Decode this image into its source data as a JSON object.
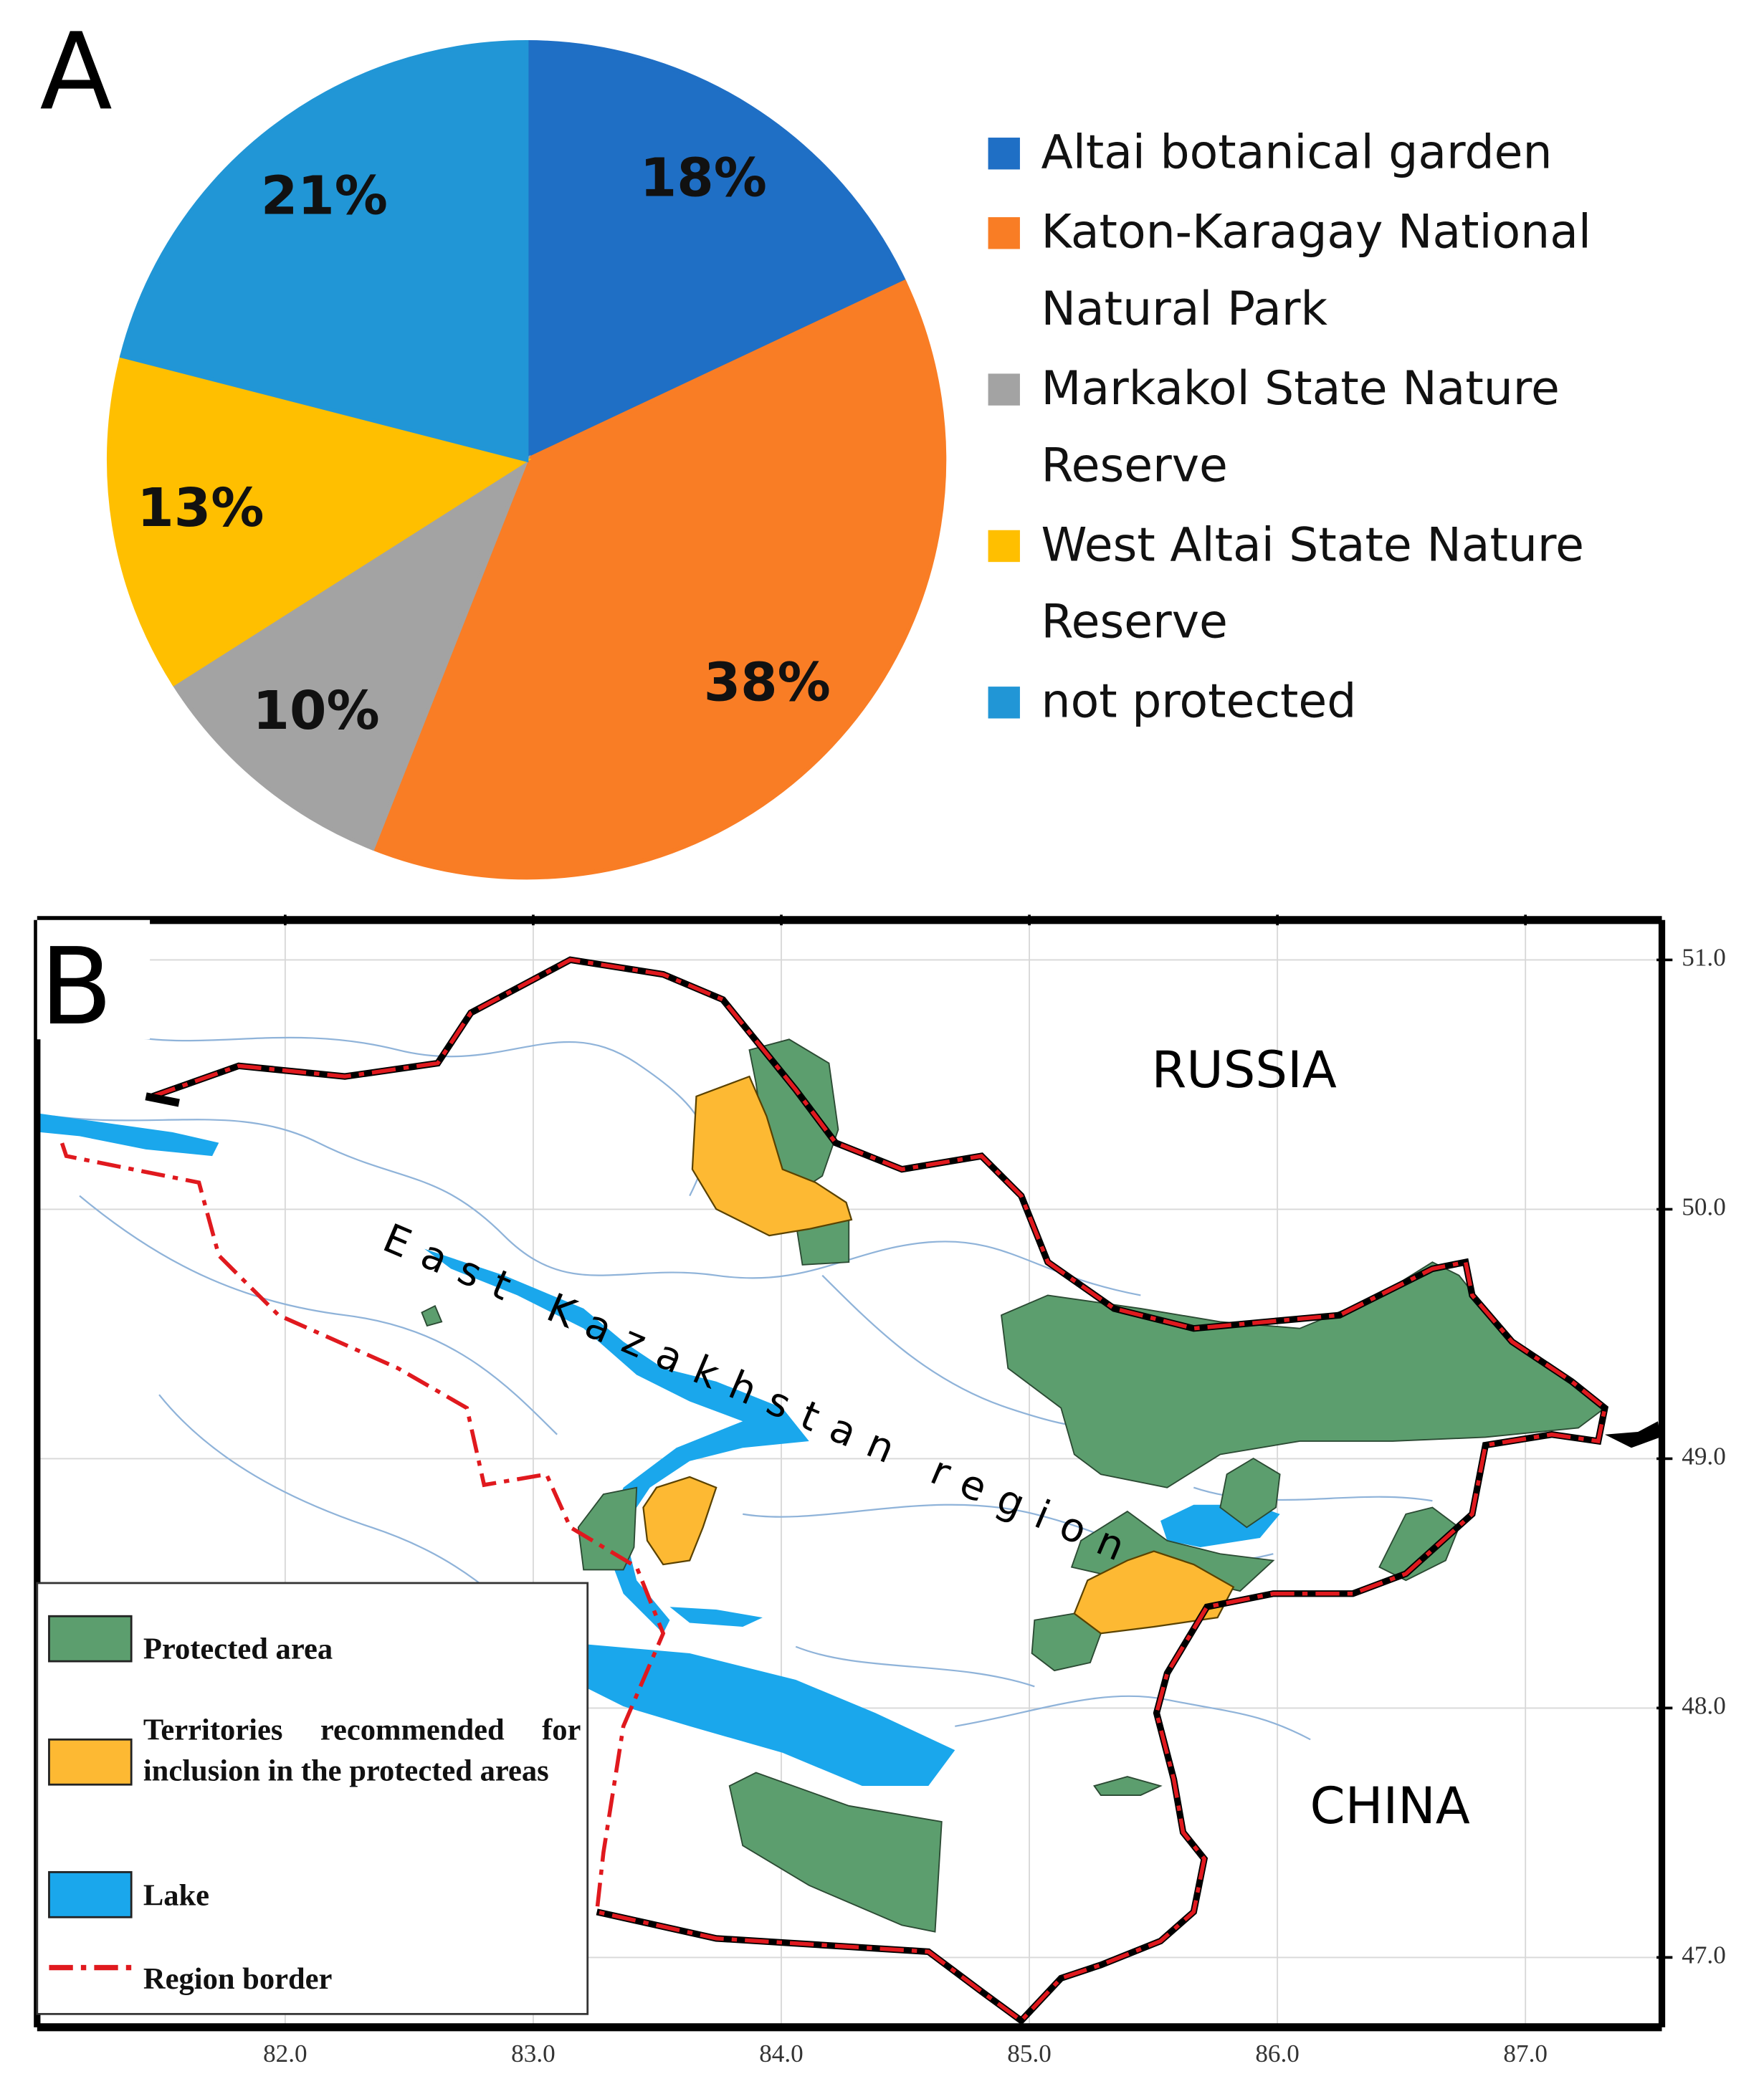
{
  "chart_data": {
    "type": "pie",
    "panel_label": "A",
    "categories": [
      "Altai botanical garden",
      "Katon-Karagay National Natural Park",
      "Markakol State Nature Reserve",
      "West Altai State Nature Reserve",
      "not protected"
    ],
    "values": [
      18,
      38,
      10,
      13,
      21
    ],
    "value_labels": [
      "18%",
      "38%",
      "10%",
      "13%",
      "21%"
    ],
    "colors": [
      "#1f6fc5",
      "#f97d25",
      "#a3a3a3",
      "#ffbf00",
      "#2196d6"
    ]
  },
  "map": {
    "panel_label": "B",
    "russia": "RUSSIA",
    "china": "CHINA",
    "region": "East Kazakhstan region",
    "xlim": [
      81.0,
      87.55
    ],
    "ylim": [
      46.72,
      51.16
    ],
    "xticks": [
      {
        "value": 82,
        "label": "82.0"
      },
      {
        "value": 83,
        "label": "83.0"
      },
      {
        "value": 84,
        "label": "84.0"
      },
      {
        "value": 85,
        "label": "85.0"
      },
      {
        "value": 86,
        "label": "86.0"
      },
      {
        "value": 87,
        "label": "87.0"
      }
    ],
    "yticks": [
      {
        "value": 51,
        "label": "51.0"
      },
      {
        "value": 50,
        "label": "50.0"
      },
      {
        "value": 49,
        "label": "49.0"
      },
      {
        "value": 48,
        "label": "48.0"
      },
      {
        "value": 47,
        "label": "47.0"
      }
    ],
    "grid": true,
    "legend": [
      {
        "label": "Protected area",
        "color": "#5c9e6e"
      },
      {
        "label": "Territories recommended for inclusion in the protected areas",
        "color": "#fdb933"
      },
      {
        "label": "Lake",
        "color": "#1aa7ec"
      },
      {
        "label": "Region border",
        "color": "#e0191e"
      }
    ]
  }
}
